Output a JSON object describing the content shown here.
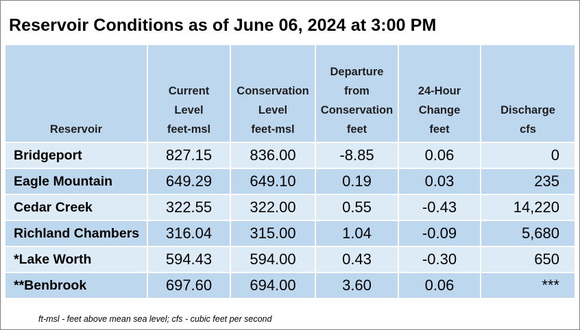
{
  "title": "Reservoir Conditions as of June 06, 2024 at 3:00 PM",
  "columns": [
    {
      "lines": [
        "Reservoir"
      ]
    },
    {
      "lines": [
        "Current",
        "Level",
        "feet-msl"
      ]
    },
    {
      "lines": [
        "Conservation",
        "Level",
        "feet-msl"
      ]
    },
    {
      "lines": [
        "Departure",
        "from",
        "Conservation",
        "feet"
      ]
    },
    {
      "lines": [
        "24-Hour",
        "Change",
        "feet"
      ]
    },
    {
      "lines": [
        "Discharge",
        "cfs"
      ]
    }
  ],
  "rows": [
    {
      "name": "Bridgeport",
      "current": "827.15",
      "conservation": "836.00",
      "departure": "-8.85",
      "change": "0.06",
      "discharge": "0"
    },
    {
      "name": "Eagle Mountain",
      "current": "649.29",
      "conservation": "649.10",
      "departure": "0.19",
      "change": "0.03",
      "discharge": "235"
    },
    {
      "name": "Cedar Creek",
      "current": "322.55",
      "conservation": "322.00",
      "departure": "0.55",
      "change": "-0.43",
      "discharge": "14,220"
    },
    {
      "name": "Richland Chambers",
      "current": "316.04",
      "conservation": "315.00",
      "departure": "1.04",
      "change": "-0.09",
      "discharge": "5,680"
    },
    {
      "name": "*Lake Worth",
      "current": "594.43",
      "conservation": "594.00",
      "departure": "0.43",
      "change": "-0.30",
      "discharge": "650"
    },
    {
      "name": "**Benbrook",
      "current": "697.60",
      "conservation": "694.00",
      "departure": "3.60",
      "change": "0.06",
      "discharge": "***"
    }
  ],
  "footnote": "ft-msl - feet above mean sea level; cfs - cubic feet per second",
  "colors": {
    "header_bg": "#bdd7ee",
    "row_light": "#ddebf7",
    "row_dark": "#bdd7ee",
    "border": "#7f7f7f"
  }
}
